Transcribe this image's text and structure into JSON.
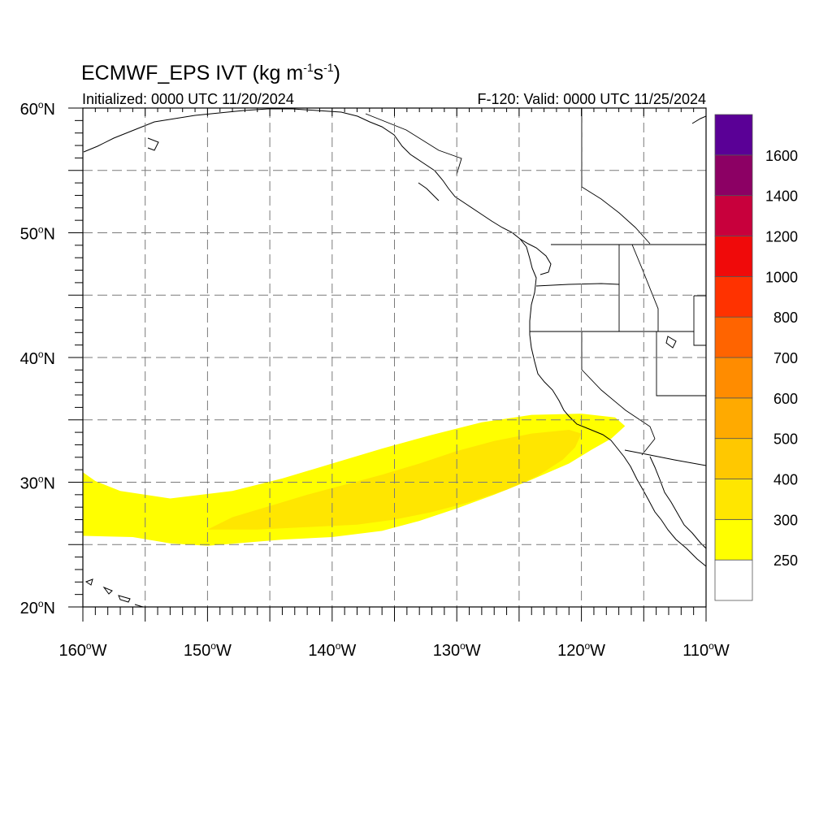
{
  "title": {
    "main": "ECMWF_EPS IVT (kg m",
    "exp1": "-1",
    "mid": "s",
    "exp2": "-1",
    "close": ")"
  },
  "subtitle_left": "Initialized: 0000 UTC 11/20/2024",
  "subtitle_right": "F-120: Valid: 0000 UTC 11/25/2024",
  "map": {
    "lon_range": [
      -160,
      -110
    ],
    "lat_range": [
      20,
      60
    ],
    "grid_lons": [
      -155,
      -150,
      -145,
      -140,
      -135,
      -130,
      -125,
      -120,
      -115
    ],
    "grid_lats": [
      25,
      30,
      35,
      40,
      45,
      50,
      55
    ],
    "lon_labels": [
      {
        "lon": -160,
        "text": "160",
        "hem": "W"
      },
      {
        "lon": -150,
        "text": "150",
        "hem": "W"
      },
      {
        "lon": -140,
        "text": "140",
        "hem": "W"
      },
      {
        "lon": -130,
        "text": "130",
        "hem": "W"
      },
      {
        "lon": -120,
        "text": "120",
        "hem": "W"
      },
      {
        "lon": -110,
        "text": "110",
        "hem": "W"
      }
    ],
    "lat_labels": [
      {
        "lat": 60,
        "text": "60",
        "hem": "N"
      },
      {
        "lat": 50,
        "text": "50",
        "hem": "N"
      },
      {
        "lat": 40,
        "text": "40",
        "hem": "N"
      },
      {
        "lat": 30,
        "text": "30",
        "hem": "N"
      },
      {
        "lat": 20,
        "text": "20",
        "hem": "N"
      }
    ]
  },
  "colorbar": {
    "colors": [
      "#ffffff",
      "#ffff00",
      "#ffe600",
      "#ffc800",
      "#ffaa00",
      "#ff8c00",
      "#ff6400",
      "#ff3200",
      "#f00a0a",
      "#c8003c",
      "#8c0064",
      "#5a0096"
    ],
    "labels": [
      "250",
      "300",
      "400",
      "500",
      "600",
      "700",
      "800",
      "1000",
      "1200",
      "1400",
      "1600"
    ]
  },
  "ivt_field": [
    {
      "level": "250-300",
      "color": "#ffff00",
      "outline": [
        [
          -160,
          30.8
        ],
        [
          -159,
          30.1
        ],
        [
          -157,
          29.3
        ],
        [
          -153,
          28.7
        ],
        [
          -148,
          29.3
        ],
        [
          -144,
          30.3
        ],
        [
          -140,
          31.5
        ],
        [
          -136,
          32.7
        ],
        [
          -132,
          33.8
        ],
        [
          -128,
          34.8
        ],
        [
          -124,
          35.4
        ],
        [
          -120,
          35.5
        ],
        [
          -117.3,
          35.2
        ],
        [
          -116.5,
          34.5
        ],
        [
          -117.6,
          33.5
        ],
        [
          -119.2,
          32.6
        ],
        [
          -121,
          31.5
        ],
        [
          -124,
          30.2
        ],
        [
          -127,
          29
        ],
        [
          -130,
          27.9
        ],
        [
          -133,
          26.9
        ],
        [
          -136,
          26.1
        ],
        [
          -140,
          25.6
        ],
        [
          -144,
          25.4
        ],
        [
          -150,
          24.9
        ],
        [
          -153,
          25.1
        ],
        [
          -156,
          25.6
        ],
        [
          -160,
          25.7
        ]
      ]
    },
    {
      "level": "300-400",
      "color": "#ffe600",
      "outline": [
        [
          -150,
          26.2
        ],
        [
          -148,
          27.2
        ],
        [
          -145,
          28.1
        ],
        [
          -142,
          29
        ],
        [
          -139,
          29.8
        ],
        [
          -136,
          30.6
        ],
        [
          -133,
          31.5
        ],
        [
          -130,
          32.5
        ],
        [
          -127,
          33.3
        ],
        [
          -124,
          33.9
        ],
        [
          -121,
          34.2
        ],
        [
          -120,
          33.9
        ],
        [
          -120.5,
          32.8
        ],
        [
          -121.5,
          31.8
        ],
        [
          -123.5,
          30.5
        ],
        [
          -126,
          29.4
        ],
        [
          -129,
          28.4
        ],
        [
          -132,
          27.6
        ],
        [
          -135,
          27
        ],
        [
          -138,
          26.6
        ],
        [
          -142,
          26.4
        ],
        [
          -146,
          26.2
        ]
      ]
    }
  ]
}
